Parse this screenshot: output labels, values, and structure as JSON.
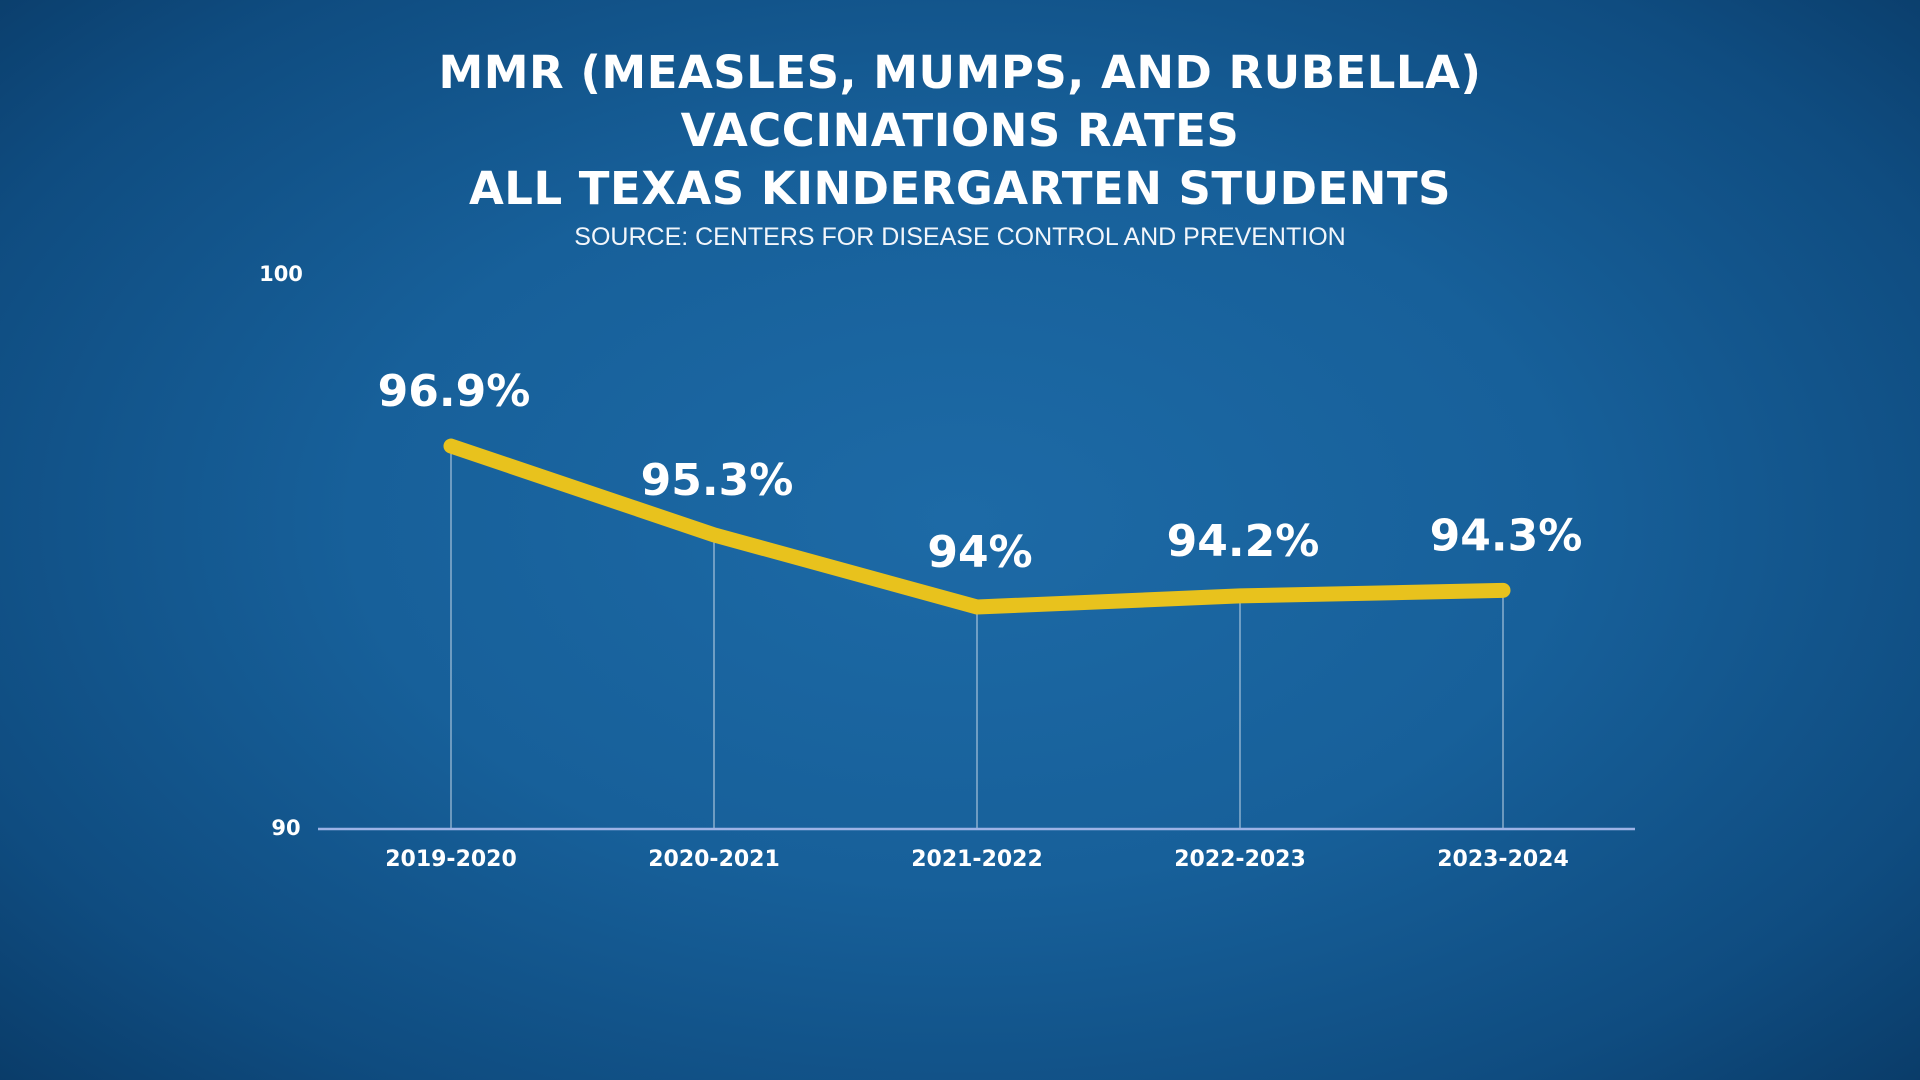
{
  "colors": {
    "background": "#17609a",
    "line": "#e8c21d",
    "axis": "#9db3e6",
    "guide": "#d8e4f0",
    "text": "#ffffff"
  },
  "chart_data": {
    "type": "line",
    "title_lines": [
      "MMR (MEASLES, MUMPS, AND RUBELLA)",
      "VACCINATIONS RATES",
      "ALL TEXAS KINDERGARTEN STUDENTS"
    ],
    "subtitle": "SOURCE: CENTERS FOR DISEASE CONTROL AND PREVENTION",
    "categories": [
      "2019-2020",
      "2020-2021",
      "2021-2022",
      "2022-2023",
      "2023-2024"
    ],
    "values": [
      96.9,
      95.3,
      94,
      94.2,
      94.3
    ],
    "data_labels": [
      "96.9%",
      "95.3%",
      "94%",
      "94.2%",
      "94.3%"
    ],
    "ylim": [
      90,
      100
    ],
    "y_ticks": [
      "100",
      "90"
    ],
    "xlabel": "",
    "ylabel": "",
    "grid": false,
    "legend": "none"
  }
}
